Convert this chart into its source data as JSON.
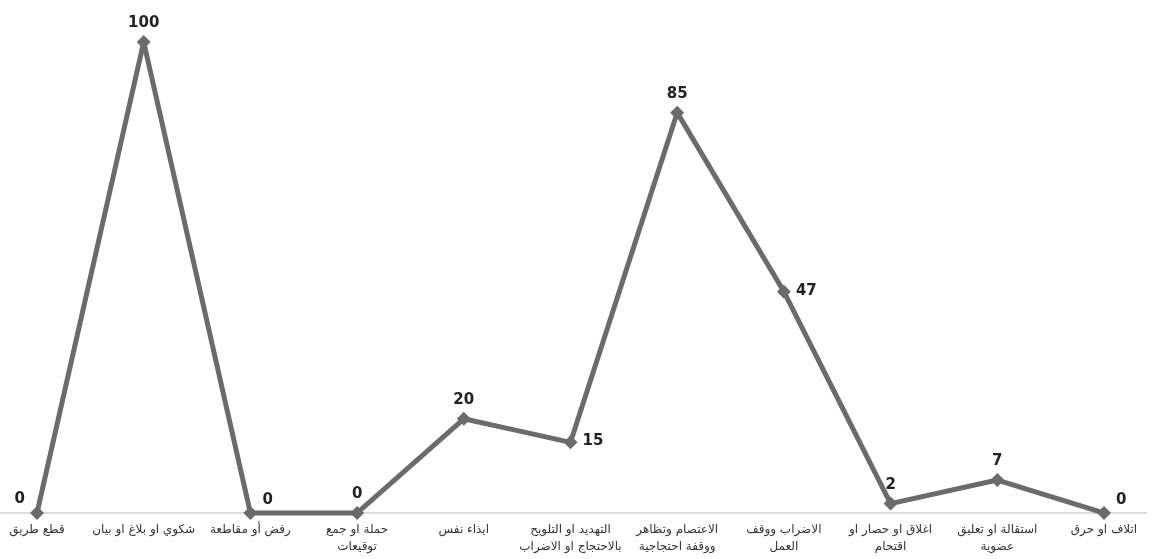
{
  "chart_data": {
    "type": "line",
    "categories": [
      "قطع طريق",
      "شكوي او بلاغ او بيان",
      "رفض أو مقاطعة",
      "حملة او جمع\nتوقيعات",
      "ايذاء نفس",
      "التهديد او التلويح\nبالاحتجاج او الاضراب",
      "الاعتصام وتظاهر\nووقفة احتجاجية",
      "الاضراب ووقف\nالعمل",
      "اغلاق او حصار او\nاقتحام",
      "استقالة او تعليق\nعضوية",
      "اتلاف او حرق"
    ],
    "series": [
      {
        "color": "#6b6b6b",
        "values": [
          0,
          100,
          0,
          0,
          20,
          15,
          85,
          47,
          2,
          7,
          0
        ]
      }
    ],
    "marker": "diamond",
    "data_labels": true
  }
}
